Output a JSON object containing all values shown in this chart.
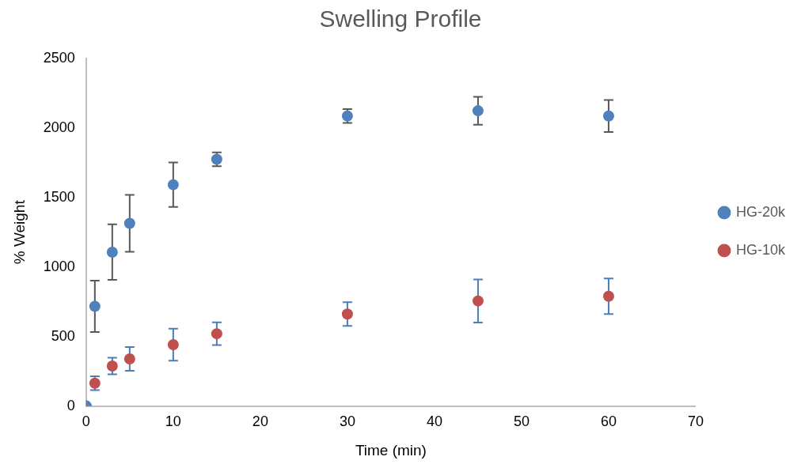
{
  "chart_data": {
    "type": "scatter",
    "title": "Swelling Profile",
    "xlabel": "Time (min)",
    "ylabel": "% Weight",
    "x": [
      0,
      1,
      3,
      5,
      10,
      15,
      30,
      45,
      60
    ],
    "series": [
      {
        "name": "HG-20k",
        "color": "#4f81bd",
        "values": [
          0,
          717,
          1107,
          1314,
          1592,
          1775,
          2086,
          2124,
          2086
        ],
        "errors": [
          null,
          185,
          200,
          205,
          160,
          50,
          50,
          100,
          115
        ]
      },
      {
        "name": "HG-10k",
        "color": "#c0504d",
        "values": [
          0,
          164,
          288,
          339,
          441,
          520,
          662,
          756,
          790
        ],
        "errors": [
          null,
          50,
          60,
          85,
          115,
          82,
          85,
          155,
          128
        ]
      }
    ],
    "xlim": [
      0,
      70
    ],
    "xticks": [
      0,
      10,
      20,
      30,
      40,
      50,
      60,
      70
    ],
    "ylim": [
      0,
      2500
    ],
    "yticks": [
      0,
      500,
      1000,
      1500,
      2000,
      2500
    ],
    "grid": false,
    "legend": "right",
    "marker": "circle"
  }
}
